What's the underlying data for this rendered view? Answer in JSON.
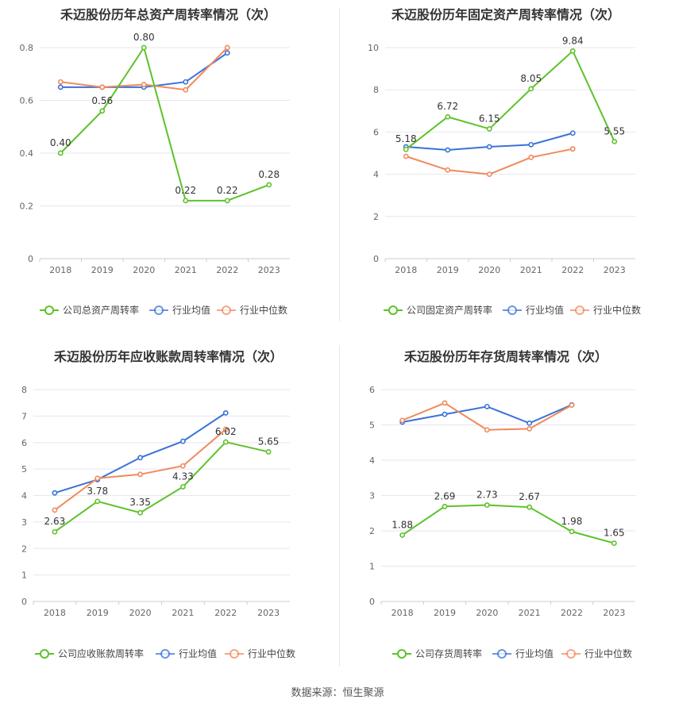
{
  "footer": {
    "source": "数据来源：恒生聚源"
  },
  "colors": {
    "company": "#5dc22a",
    "avg": "#3a72d8",
    "median": "#f08a5d",
    "grid": "#e6e6f0",
    "axis_text": "#666666",
    "title": "#333333"
  },
  "chart_data": [
    {
      "type": "line",
      "title": "禾迈股份历年总资产周转率情况（次）",
      "categories": [
        "2018",
        "2019",
        "2020",
        "2021",
        "2022",
        "2023"
      ],
      "ylim": [
        0,
        0.8
      ],
      "yticks": [
        "0",
        "0.2",
        "0.4",
        "0.6",
        "0.8"
      ],
      "series": [
        {
          "name": "公司总资产周转率",
          "values": [
            0.4,
            0.56,
            0.8,
            0.22,
            0.22,
            0.28
          ],
          "labels": [
            "0.40",
            "0.56",
            "0.80",
            "0.22",
            "0.22",
            "0.28"
          ]
        },
        {
          "name": "行业均值",
          "values": [
            0.65,
            0.65,
            0.65,
            0.67,
            0.78,
            null
          ]
        },
        {
          "name": "行业中位数",
          "values": [
            0.67,
            0.65,
            0.66,
            0.64,
            0.8,
            null
          ]
        }
      ],
      "legend": "bottom"
    },
    {
      "type": "line",
      "title": "禾迈股份历年固定资产周转率情况（次）",
      "categories": [
        "2018",
        "2019",
        "2020",
        "2021",
        "2022",
        "2023"
      ],
      "ylim": [
        0,
        10
      ],
      "yticks": [
        "0",
        "2",
        "4",
        "6",
        "8",
        "10"
      ],
      "series": [
        {
          "name": "公司固定资产周转率",
          "values": [
            5.18,
            6.72,
            6.15,
            8.05,
            9.84,
            5.55
          ],
          "labels": [
            "5.18",
            "6.72",
            "6.15",
            "8.05",
            "9.84",
            "5.55"
          ]
        },
        {
          "name": "行业均值",
          "values": [
            5.3,
            5.15,
            5.3,
            5.4,
            5.95,
            null
          ]
        },
        {
          "name": "行业中位数",
          "values": [
            4.85,
            4.2,
            4.0,
            4.8,
            5.2,
            null
          ]
        }
      ],
      "legend": "bottom"
    },
    {
      "type": "line",
      "title": "禾迈股份历年应收账款周转率情况（次）",
      "categories": [
        "2018",
        "2019",
        "2020",
        "2021",
        "2022",
        "2023"
      ],
      "ylim": [
        0,
        8
      ],
      "yticks": [
        "0",
        "1",
        "2",
        "3",
        "4",
        "5",
        "6",
        "7",
        "8"
      ],
      "series": [
        {
          "name": "公司应收账款周转率",
          "values": [
            2.63,
            3.78,
            3.35,
            4.33,
            6.02,
            5.65
          ],
          "labels": [
            "2.63",
            "3.78",
            "3.35",
            "4.33",
            "6.02",
            "5.65"
          ]
        },
        {
          "name": "行业均值",
          "values": [
            4.1,
            4.6,
            5.43,
            6.05,
            7.12,
            null
          ]
        },
        {
          "name": "行业中位数",
          "values": [
            3.45,
            4.65,
            4.8,
            5.12,
            6.5,
            null
          ]
        }
      ],
      "legend": "bottom"
    },
    {
      "type": "line",
      "title": "禾迈股份历年存货周转率情况（次）",
      "categories": [
        "2018",
        "2019",
        "2020",
        "2021",
        "2022",
        "2023"
      ],
      "ylim": [
        0,
        6
      ],
      "yticks": [
        "0",
        "1",
        "2",
        "3",
        "4",
        "5",
        "6"
      ],
      "series": [
        {
          "name": "公司存货周转率",
          "values": [
            1.88,
            2.69,
            2.73,
            2.67,
            1.98,
            1.65
          ],
          "labels": [
            "1.88",
            "2.69",
            "2.73",
            "2.67",
            "1.98",
            "1.65"
          ]
        },
        {
          "name": "行业均值",
          "values": [
            5.08,
            5.3,
            5.52,
            5.05,
            5.57,
            null
          ]
        },
        {
          "name": "行业中位数",
          "values": [
            5.13,
            5.62,
            4.86,
            4.89,
            5.56,
            null
          ]
        }
      ],
      "legend": "bottom"
    }
  ]
}
